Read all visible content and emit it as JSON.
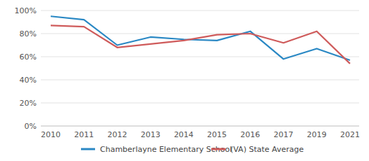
{
  "chart_data": {
    "type": "line",
    "categories": [
      "2010",
      "2011",
      "2012",
      "2013",
      "2014",
      "2015",
      "2016",
      "2017",
      "2019",
      "2021"
    ],
    "series": [
      {
        "name": "Chamberlayne Elementary School",
        "color": "#2a88c4",
        "values": [
          95,
          92,
          70,
          77,
          75,
          74,
          82,
          58,
          67,
          57
        ]
      },
      {
        "name": "(VA) State Average",
        "color": "#cf5b5b",
        "values": [
          87,
          86,
          68,
          71,
          74,
          79,
          80,
          72,
          82,
          54
        ]
      }
    ],
    "ylim": [
      0,
      100
    ],
    "yticks": [
      {
        "value": 0,
        "label": "0%"
      },
      {
        "value": 20,
        "label": "20%"
      },
      {
        "value": 40,
        "label": "40%"
      },
      {
        "value": 60,
        "label": "60%"
      },
      {
        "value": 80,
        "label": "80%"
      },
      {
        "value": 100,
        "label": "100%"
      }
    ],
    "grid": true,
    "legend": "bottom"
  }
}
